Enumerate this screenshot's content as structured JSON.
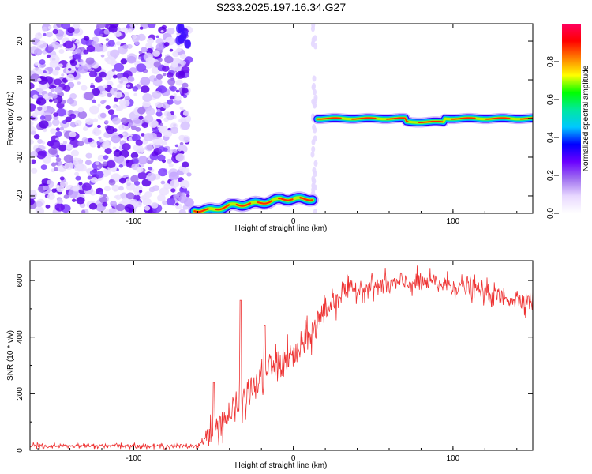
{
  "title": "S233.2025.197.16.34.G27",
  "chart_data": [
    {
      "type": "heatmap",
      "title": "S233.2025.197.16.34.G27",
      "xlabel": "Height of straight line (km)",
      "ylabel": "Frequency (Hz)",
      "xlim": [
        -165,
        150
      ],
      "ylim": [
        -24.5,
        24.5
      ],
      "x_ticks": [
        -100,
        0,
        100
      ],
      "y_ticks": [
        -20,
        -10,
        0,
        10,
        20
      ],
      "colorbar": {
        "label": "Normalized spectral amplitude",
        "range": [
          0,
          1
        ],
        "ticks": [
          "0.0",
          "0.2",
          "0.4",
          "0.6",
          "0.8"
        ],
        "colors": [
          "#ffffff",
          "#e8d8ff",
          "#a070f0",
          "#6a00ff",
          "#0000ff",
          "#00c8ff",
          "#00e8a0",
          "#00ff00",
          "#ffff00",
          "#ff8000",
          "#ff0000",
          "#ff0060"
        ]
      },
      "features": [
        {
          "name": "noise",
          "x_range": [
            -165,
            -65
          ],
          "freq_range": [
            -24.5,
            24.5
          ],
          "amplitude": [
            0.02,
            0.15
          ]
        },
        {
          "name": "low-band",
          "x_range": [
            -62,
            12
          ],
          "freq": [
            -23.5,
            -23.5,
            -22,
            -21,
            -20.8
          ],
          "amplitude": 0.85
        },
        {
          "name": "main-band",
          "x_range": [
            15,
            150
          ],
          "freq": 0,
          "amplitude": 0.9
        }
      ]
    },
    {
      "type": "line",
      "xlabel": "Height of straight line (km)",
      "ylabel": "SNR (10 * v/v)",
      "xlim": [
        -165,
        150
      ],
      "ylim": [
        0,
        670
      ],
      "x_ticks": [
        -100,
        0,
        100
      ],
      "y_ticks": [
        0,
        200,
        400,
        600
      ],
      "series_color": "#ee3333",
      "envelope": {
        "x": [
          -165,
          -60,
          -52,
          -45,
          -35,
          -25,
          -15,
          0,
          10,
          20,
          30,
          50,
          70,
          90,
          110,
          130,
          150
        ],
        "y": [
          15,
          15,
          60,
          100,
          150,
          220,
          290,
          330,
          400,
          500,
          560,
          580,
          590,
          590,
          575,
          540,
          530
        ]
      },
      "spikes": [
        [
          -50,
          240
        ],
        [
          -33,
          530
        ],
        [
          -18,
          440
        ]
      ]
    }
  ]
}
